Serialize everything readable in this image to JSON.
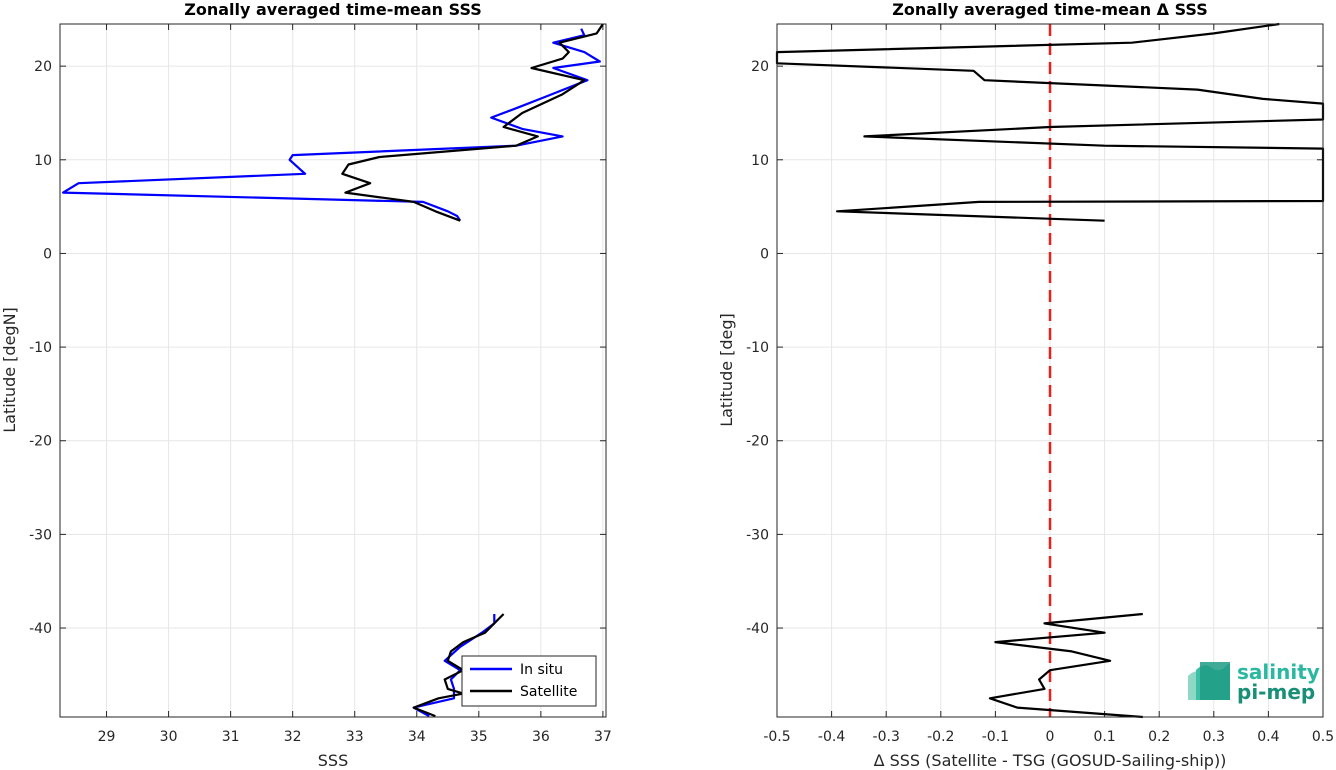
{
  "chart_data": [
    {
      "type": "line",
      "title": "Zonally averaged time-mean SSS",
      "xlabel": "SSS",
      "ylabel": "Latitude [degN]",
      "xlim": [
        28.25,
        37.05
      ],
      "ylim": [
        -49.5,
        24.5
      ],
      "xticks": [
        "29",
        "30",
        "31",
        "32",
        "33",
        "34",
        "35",
        "36",
        "37"
      ],
      "yticks": [
        "20",
        "10",
        "0",
        "-10",
        "-20",
        "-30",
        "-40"
      ],
      "grid": true,
      "legend": {
        "placement": "bottom-right",
        "entries": [
          "In situ",
          "Satellite"
        ]
      },
      "colors": {
        "in_situ": "#0000ff",
        "satellite": "#000000"
      },
      "series": [
        {
          "name": "In situ",
          "points": [
            [
              36.65,
              24.0
            ],
            [
              36.7,
              23.3
            ],
            [
              36.2,
              22.5
            ],
            [
              36.7,
              21.5
            ],
            [
              36.95,
              20.5
            ],
            [
              36.2,
              19.8
            ],
            [
              36.75,
              18.5
            ],
            [
              36.1,
              16.8
            ],
            [
              35.6,
              15.5
            ],
            [
              35.2,
              14.5
            ],
            [
              35.7,
              13.3
            ],
            [
              36.35,
              12.5
            ],
            [
              35.6,
              11.5
            ],
            [
              32.0,
              10.5
            ],
            [
              31.95,
              10.0
            ],
            [
              32.2,
              8.5
            ],
            [
              28.55,
              7.5
            ],
            [
              28.3,
              6.5
            ],
            [
              34.1,
              5.5
            ],
            [
              34.5,
              4.5
            ],
            [
              34.65,
              4.0
            ],
            [
              34.7,
              3.5
            ]
          ]
        },
        {
          "name": "Satellite",
          "points": [
            [
              37.0,
              24.5
            ],
            [
              36.9,
              23.5
            ],
            [
              36.3,
              22.5
            ],
            [
              36.45,
              21.5
            ],
            [
              36.35,
              20.8
            ],
            [
              35.85,
              19.8
            ],
            [
              36.7,
              18.5
            ],
            [
              36.35,
              17.0
            ],
            [
              35.7,
              15.0
            ],
            [
              35.4,
              13.5
            ],
            [
              35.95,
              12.5
            ],
            [
              35.6,
              11.5
            ],
            [
              33.4,
              10.3
            ],
            [
              32.9,
              9.5
            ],
            [
              32.8,
              8.5
            ],
            [
              33.25,
              7.5
            ],
            [
              32.85,
              6.5
            ],
            [
              33.95,
              5.5
            ],
            [
              34.3,
              4.5
            ],
            [
              34.7,
              3.5
            ]
          ]
        },
        {
          "name": "In situ",
          "points": [
            [
              35.25,
              -38.5
            ],
            [
              35.25,
              -39.5
            ],
            [
              35.05,
              -40.5
            ],
            [
              34.7,
              -42.0
            ],
            [
              34.45,
              -43.5
            ],
            [
              34.7,
              -44.5
            ],
            [
              34.55,
              -45.5
            ],
            [
              34.6,
              -46.5
            ],
            [
              34.6,
              -47.5
            ],
            [
              33.95,
              -48.5
            ],
            [
              34.2,
              -49.4
            ]
          ]
        },
        {
          "name": "Satellite",
          "points": [
            [
              35.4,
              -38.5
            ],
            [
              35.1,
              -40.5
            ],
            [
              34.75,
              -41.5
            ],
            [
              34.55,
              -42.5
            ],
            [
              34.5,
              -43.5
            ],
            [
              34.75,
              -44.5
            ],
            [
              34.45,
              -45.5
            ],
            [
              34.5,
              -46.5
            ],
            [
              34.75,
              -47.0
            ],
            [
              34.35,
              -47.5
            ],
            [
              33.95,
              -48.5
            ],
            [
              34.3,
              -49.4
            ]
          ]
        }
      ]
    },
    {
      "type": "line",
      "title": "Zonally averaged time-mean Δ SSS",
      "xlabel": "Δ SSS (Satellite - TSG (GOSUD-Sailing-ship))",
      "ylabel": "Latitude [deg]",
      "xlim": [
        -0.5,
        0.5
      ],
      "ylim": [
        -49.5,
        24.5
      ],
      "xticks": [
        "-0.5",
        "-0.4",
        "-0.3",
        "-0.2",
        "-0.1",
        "0",
        "0.1",
        "0.2",
        "0.3",
        "0.4",
        "0.5"
      ],
      "yticks": [
        "20",
        "10",
        "0",
        "-10",
        "-20",
        "-30",
        "-40"
      ],
      "grid": true,
      "reference_line": {
        "x": 0,
        "color": "#e8201b",
        "style": "dashed"
      },
      "colors": {
        "delta": "#000000"
      },
      "series": [
        {
          "points": [
            [
              0.42,
              24.5
            ],
            [
              0.3,
              23.5
            ],
            [
              0.15,
              22.5
            ],
            [
              -0.5,
              21.5
            ],
            [
              -0.5,
              20.3
            ],
            [
              -0.14,
              19.5
            ],
            [
              -0.12,
              18.5
            ],
            [
              0.27,
              17.5
            ],
            [
              0.39,
              16.5
            ],
            [
              0.5,
              16.0
            ],
            [
              0.5,
              14.3
            ],
            [
              0.0,
              13.5
            ],
            [
              -0.34,
              12.5
            ],
            [
              0.1,
              11.5
            ],
            [
              0.5,
              11.2
            ],
            [
              0.5,
              5.6
            ],
            [
              -0.13,
              5.5
            ],
            [
              -0.39,
              4.5
            ],
            [
              0.1,
              3.5
            ]
          ]
        },
        {
          "points": [
            [
              0.17,
              -38.5
            ],
            [
              -0.01,
              -39.5
            ],
            [
              0.1,
              -40.5
            ],
            [
              -0.1,
              -41.5
            ],
            [
              0.04,
              -42.5
            ],
            [
              0.11,
              -43.5
            ],
            [
              0.0,
              -44.5
            ],
            [
              -0.02,
              -45.5
            ],
            [
              -0.01,
              -46.5
            ],
            [
              -0.11,
              -47.5
            ],
            [
              -0.06,
              -48.5
            ],
            [
              0.17,
              -49.5
            ]
          ]
        }
      ]
    }
  ],
  "logo": {
    "line1": "salinity",
    "line2": "pi-mep",
    "color1": "#2ab8a0",
    "color2": "#1a8f78"
  }
}
